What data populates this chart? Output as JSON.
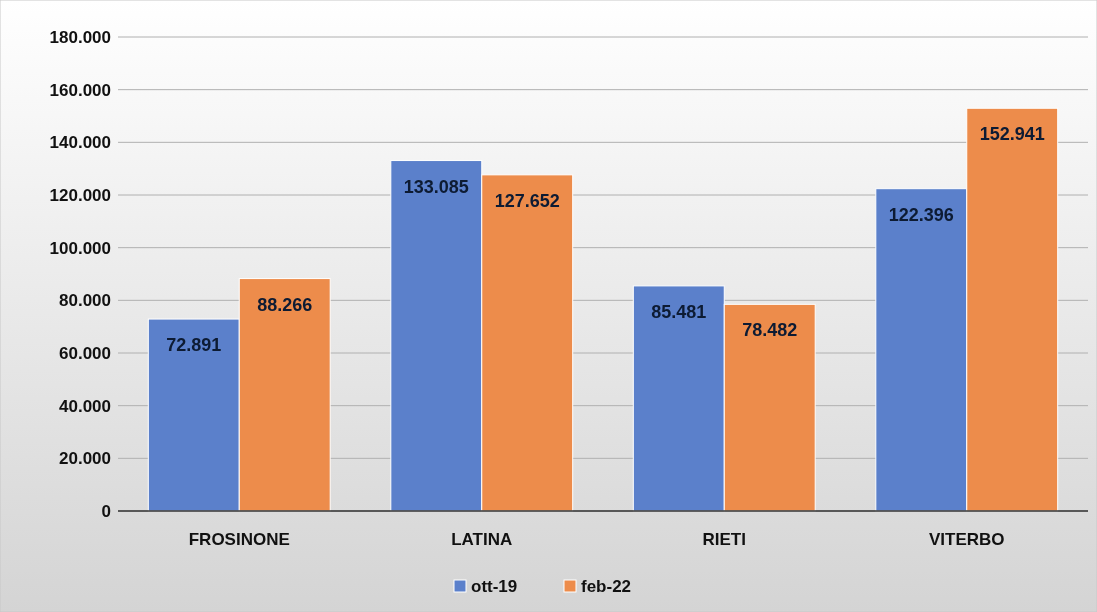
{
  "chart_data": {
    "type": "bar",
    "categories": [
      "FROSINONE",
      "LATINA",
      "RIETI",
      "VITERBO"
    ],
    "series": [
      {
        "name": "ott-19",
        "color": "#5b80cb",
        "values": [
          72891,
          133085,
          85481,
          122396
        ],
        "value_labels": [
          "72.891",
          "133.085",
          "85.481",
          "122.396"
        ]
      },
      {
        "name": "feb-22",
        "color": "#ed8c4b",
        "values": [
          88266,
          127652,
          78482,
          152941
        ],
        "value_labels": [
          "88.266",
          "127.652",
          "78.482",
          "152.941"
        ]
      }
    ],
    "ylim": [
      0,
      180000
    ],
    "yticks": [
      {
        "value": 0,
        "label": "0"
      },
      {
        "value": 20000,
        "label": "20.000"
      },
      {
        "value": 40000,
        "label": "40.000"
      },
      {
        "value": 60000,
        "label": "60.000"
      },
      {
        "value": 80000,
        "label": "80.000"
      },
      {
        "value": 100000,
        "label": "100.000"
      },
      {
        "value": 120000,
        "label": "120.000"
      },
      {
        "value": 140000,
        "label": "140.000"
      },
      {
        "value": 160000,
        "label": "160.000"
      },
      {
        "value": 180000,
        "label": "180.000"
      }
    ],
    "grid": "y",
    "legend": "bottom"
  }
}
